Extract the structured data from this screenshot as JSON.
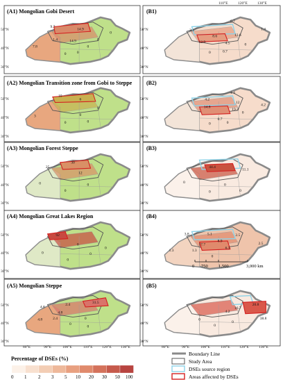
{
  "panels": [
    {
      "id": "A1",
      "title": "(A1) Mongolian Gobi Desert",
      "values": [
        "9.7",
        "14.9",
        "1.4",
        "14.9",
        "7.8",
        "0",
        "0",
        "0",
        "0",
        "0"
      ]
    },
    {
      "id": "B1",
      "title": "(B1)",
      "values": [
        "0.7",
        "2.1",
        "8.6",
        "13.6",
        "12.9",
        "4.5",
        "1.4",
        "0.7",
        "0",
        "0"
      ]
    },
    {
      "id": "A2",
      "title": "(A2) Mongolian Transition zone from Gobi to Steppe",
      "values": [
        "10",
        "6",
        "3",
        "0",
        "0",
        "0",
        "0"
      ]
    },
    {
      "id": "B2",
      "title": "(B2)",
      "values": [
        "1.4",
        "4.2",
        "14.8",
        "12",
        "19.3",
        "4.2",
        "0.7",
        "0",
        "0",
        "0"
      ]
    },
    {
      "id": "A3",
      "title": "(A3) Mongolian  Forest Steppe",
      "values": [
        "25",
        "30",
        "12",
        "0",
        "0",
        "0"
      ]
    },
    {
      "id": "B3",
      "title": "(B3)",
      "values": [
        "44.4",
        "11.1",
        "0",
        "0",
        "0",
        "0"
      ]
    },
    {
      "id": "A4",
      "title": "(A4) Mongolian Great Lakes Region",
      "values": [
        "92",
        "0",
        "0",
        "0",
        "0",
        "0"
      ]
    },
    {
      "id": "B4",
      "title": "(B4)",
      "values": [
        "3.8",
        "5.1",
        "17.7",
        "8.9",
        "2.5",
        "1.3",
        "2.5",
        "1.3",
        "6.3",
        "0"
      ]
    },
    {
      "id": "A5",
      "title": "(A5) Mongolian Steppe",
      "values": [
        "4.8",
        "2.4",
        "31.5",
        "4.8",
        "2.4",
        "0",
        "0",
        "4.8",
        "0"
      ]
    },
    {
      "id": "B5",
      "title": "(B5)",
      "values": [
        "20.8",
        "38.8",
        "16.7",
        "4.2",
        "0",
        "0",
        "0"
      ]
    }
  ],
  "lon_labels": [
    "80°E",
    "90°E",
    "100°E",
    "110°E",
    "120°E",
    "130°E"
  ],
  "lat_labels": [
    "50°N",
    "40°N",
    "30°N"
  ],
  "legend": {
    "title": "Percentage of DSEs (%)",
    "ticks": [
      "0",
      "1",
      "2",
      "3",
      "5",
      "10",
      "20",
      "30",
      "50",
      "100"
    ],
    "colors": [
      "#fcf1e8",
      "#f8e0cf",
      "#f3cdb4",
      "#eeb89a",
      "#e8a080",
      "#e08a6c",
      "#d4725b",
      "#c65a4c",
      "#b84440"
    ]
  },
  "symbols": [
    {
      "label": "Boundary Line",
      "color": "#8a8a8a"
    },
    {
      "label": "Study Area",
      "color": "#555555"
    },
    {
      "label": "DSEs source region",
      "color": "#8fd3e8"
    },
    {
      "label": "Areas affected by DSEs",
      "color": "#d42020"
    }
  ],
  "scale": {
    "labels": [
      "0",
      "750",
      "1,500",
      "3,000 km"
    ]
  }
}
